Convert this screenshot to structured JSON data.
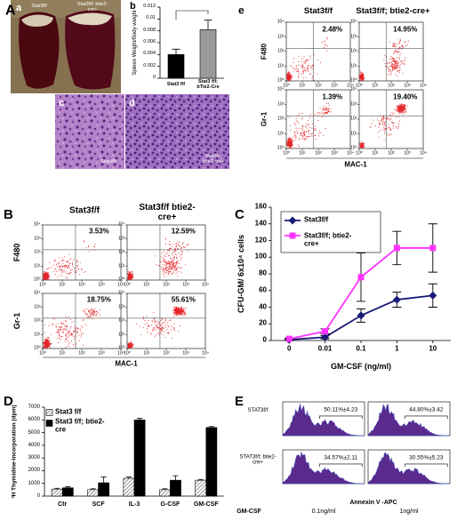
{
  "panel_labels": {
    "A": "A",
    "a": "a",
    "b": "b",
    "c": "c",
    "d": "d",
    "e": "e",
    "B": "B",
    "C": "C",
    "D": "D",
    "E": "E"
  },
  "photo_a": {
    "left_label": "Stat3f/f",
    "right_label": "Stat3f/f; btie2-cre+"
  },
  "histology": {
    "c_label": "Stat3f/f",
    "d_label": "Stat3f/f; btie2-cre+"
  },
  "flow_axis": {
    "log": true,
    "lim": [
      1,
      10000
    ],
    "ticks": [
      {
        "value": 1,
        "label": "10⁰"
      },
      {
        "value": 10,
        "label": "10¹"
      },
      {
        "value": 100,
        "label": "10²"
      },
      {
        "value": 1000,
        "label": "10³"
      },
      {
        "value": 10000,
        "label": "10⁴"
      }
    ]
  },
  "flow_e": {
    "column_headers": [
      "Stat3f/f",
      "Stat3f/f; btie2-cre+"
    ],
    "row_labels": [
      "F480",
      "Gr-1"
    ],
    "x_label": "MAC-1",
    "percentages": [
      [
        "2.48%",
        "14.95%"
      ],
      [
        "1.39%",
        "19.40%"
      ]
    ]
  },
  "flow_B": {
    "column_headers": [
      "Stat3f/f",
      "Stat3f/f btie2-cre+"
    ],
    "row_labels": [
      "F480",
      "Gr-1"
    ],
    "x_label": "MAC-1",
    "percentages": [
      [
        "3.53%",
        "12.59%"
      ],
      [
        "18.75%",
        "55.61%"
      ]
    ]
  },
  "chart_data": [
    {
      "type": "bar",
      "y_label": "Spleen Weight/Body weight",
      "categories": [
        "Stat3 f/f",
        "Stat3 f/f; bTie2-Cre"
      ],
      "values": [
        0.004,
        0.0082
      ],
      "errors": [
        0.0009,
        0.0016
      ],
      "colors": [
        "#000000",
        "#9a9a9a"
      ],
      "ylim": [
        0,
        0.012
      ],
      "yticks": [
        0,
        0.002,
        0.004,
        0.006,
        0.008,
        0.01,
        0.012
      ]
    },
    {
      "type": "line",
      "y_label": "CFU-GM/ 6x10⁴ cells",
      "x_label": "GM-CSF (ng/ml)",
      "categories": [
        "0",
        "0.01",
        "0.1",
        "1",
        "10"
      ],
      "series": [
        {
          "name": "Stat3f/f",
          "color": "#1a1a78",
          "marker": "diamond",
          "values": [
            1,
            4,
            30,
            49,
            54
          ],
          "errors": [
            1,
            2,
            8,
            9,
            14
          ]
        },
        {
          "name": "Stat3f/f; btie2-cre+",
          "color": "#ff33ff",
          "marker": "square",
          "values": [
            2,
            11,
            76,
            111,
            111
          ],
          "errors": [
            1,
            3,
            29,
            20,
            29
          ]
        }
      ],
      "ylim": [
        0,
        160
      ],
      "yticks": [
        0,
        20,
        40,
        60,
        80,
        100,
        120,
        140,
        160
      ],
      "legend": "upper left"
    },
    {
      "type": "bar",
      "y_label": "³H Thymidine-Incorporation (dpm)",
      "categories": [
        "Ctr",
        "SCF",
        "IL-3",
        "G-CSF",
        "GM-CSF"
      ],
      "series": [
        {
          "name": "Stat3 f/f",
          "color": "#ffffff",
          "hatch": true,
          "values": [
            550,
            500,
            1400,
            500,
            1250
          ],
          "errors": [
            60,
            80,
            100,
            80,
            60
          ]
        },
        {
          "name": "Stat3 f/f; btie2-cre",
          "color": "#000000",
          "values": [
            650,
            1050,
            6000,
            1250,
            5400
          ],
          "errors": [
            80,
            450,
            120,
            350,
            80
          ]
        }
      ],
      "ylim": [
        0,
        7000
      ],
      "yticks": [
        0,
        1000,
        2000,
        3000,
        4000,
        5000,
        6000,
        7000
      ],
      "legend": "upper left"
    }
  ],
  "annexin_E": {
    "row_labels": [
      "STAT3f/f",
      "STAT3f/f; btie2-cre+"
    ],
    "percentages": [
      [
        "50.11%±4.23",
        "44.80%±3.42"
      ],
      [
        "34.57%±2.11",
        "30.55%±5.23"
      ]
    ],
    "treatment_label": "GM-CSF",
    "doses": [
      "0.1ng/ml",
      "1ng/ml"
    ],
    "x_label": "Annexin V -APC"
  }
}
